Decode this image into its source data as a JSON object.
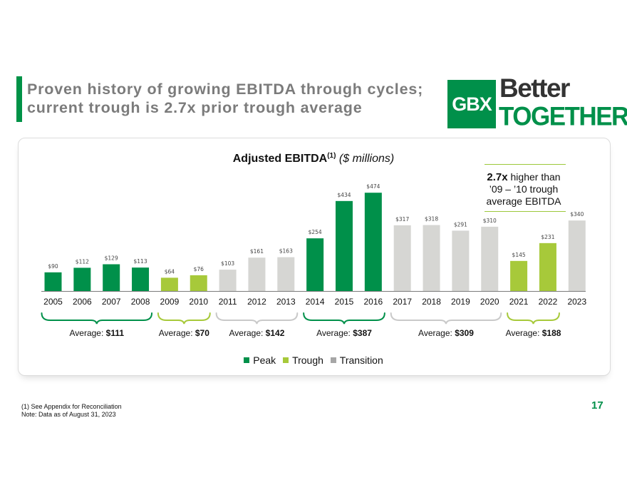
{
  "header": {
    "title_line1": "Proven history of growing EBITDA through cycles;",
    "title_line2": "current trough is 2.7x prior trough average"
  },
  "logo": {
    "mark": "GBX",
    "line1": "Better",
    "line2": "TOGETHER"
  },
  "callout": {
    "multiple": "2.7x",
    "line1_rest": " higher than",
    "line2": "’09 – ’10 trough",
    "line3": "average EBITDA"
  },
  "chart_data": {
    "type": "bar",
    "title": "Adjusted EBITDA",
    "title_superscript": "(1)",
    "units": "($ millions)",
    "categories": [
      "2005",
      "2006",
      "2007",
      "2008",
      "2009",
      "2010",
      "2011",
      "2012",
      "2013",
      "2014",
      "2015",
      "2016",
      "2017",
      "2018",
      "2019",
      "2020",
      "2021",
      "2022",
      "2023"
    ],
    "values": [
      90,
      112,
      129,
      113,
      64,
      76,
      103,
      161,
      163,
      254,
      434,
      474,
      317,
      318,
      291,
      310,
      145,
      231,
      340
    ],
    "value_labels": [
      "$90",
      "$112",
      "$129",
      "$113",
      "$64",
      "$76",
      "$103",
      "$161",
      "$163",
      "$254",
      "$434",
      "$474",
      "$317",
      "$318",
      "$291",
      "$310",
      "$145",
      "$231",
      "$340"
    ],
    "phases": [
      "peak",
      "peak",
      "peak",
      "peak",
      "trough",
      "trough",
      "transition",
      "transition",
      "transition",
      "peak",
      "peak",
      "peak",
      "transition",
      "transition",
      "transition",
      "transition",
      "trough",
      "trough",
      "transition"
    ],
    "colors": {
      "peak": "#00904a",
      "trough": "#a7c93a",
      "transition": "#d6d6d3"
    },
    "legend": [
      {
        "key": "peak",
        "label": "Peak"
      },
      {
        "key": "trough",
        "label": "Trough"
      },
      {
        "key": "transition",
        "label": "Transition"
      }
    ],
    "groups": [
      {
        "start": 0,
        "end": 3,
        "phase": "peak",
        "label": "Average:",
        "value": "$111"
      },
      {
        "start": 4,
        "end": 5,
        "phase": "trough",
        "label": "Average:",
        "value": "$70"
      },
      {
        "start": 6,
        "end": 8,
        "phase": "transition",
        "label": "Average:",
        "value": "$142"
      },
      {
        "start": 9,
        "end": 11,
        "phase": "peak",
        "label": "Average:",
        "value": "$387"
      },
      {
        "start": 12,
        "end": 15,
        "phase": "transition",
        "label": "Average:",
        "value": "$309"
      },
      {
        "start": 16,
        "end": 17,
        "phase": "trough",
        "label": "Average:",
        "value": "$188"
      }
    ],
    "ylim": [
      0,
      500
    ],
    "xlabel": "",
    "ylabel": ""
  },
  "footnotes": {
    "line1": "(1)  See Appendix for Reconciliation",
    "line2": "Note: Data as of August 31, 2023"
  },
  "page_number": "17"
}
